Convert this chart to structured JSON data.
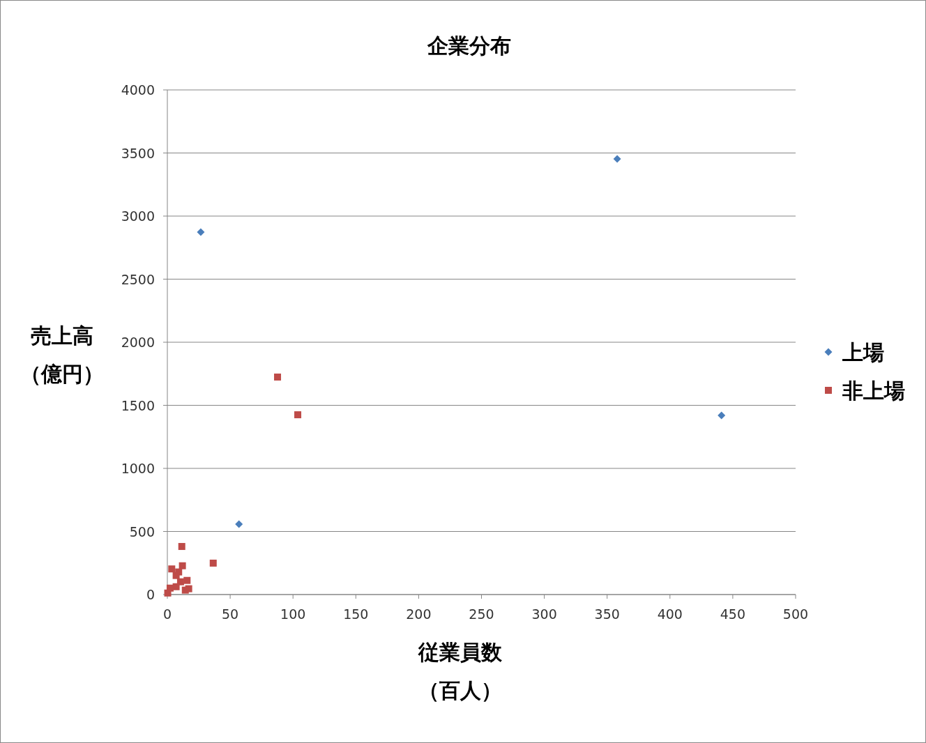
{
  "chart_data": {
    "type": "scatter",
    "title": "企業分布",
    "xlabel": "従業員数（百人）",
    "ylabel": "売上高（億円）",
    "xlim": [
      0,
      500
    ],
    "xticks": [
      0,
      50,
      100,
      150,
      200,
      250,
      300,
      350,
      400,
      450,
      500
    ],
    "ylim": [
      0,
      4000
    ],
    "yticks": [
      0,
      500,
      1000,
      1500,
      2000,
      2500,
      3000,
      3500,
      4000
    ],
    "grid": "y",
    "legend": "right",
    "series": [
      {
        "name": "上場",
        "color": "#4a7ebb",
        "marker": "diamond",
        "x": [
          26.6,
          358,
          441,
          57
        ],
        "values": [
          2873,
          3453,
          1420,
          558
        ]
      },
      {
        "name": "非上場",
        "color": "#be4b48",
        "marker": "square",
        "x": [
          87.7,
          103.8,
          11.5,
          36.5,
          12,
          3.5,
          9,
          7,
          15.7,
          10.5,
          7,
          17,
          14.3,
          2.2,
          0.3
        ],
        "values": [
          1724,
          1425,
          381,
          249,
          228,
          203,
          179,
          151,
          112,
          101,
          62,
          46,
          35,
          51,
          12
        ]
      }
    ]
  }
}
